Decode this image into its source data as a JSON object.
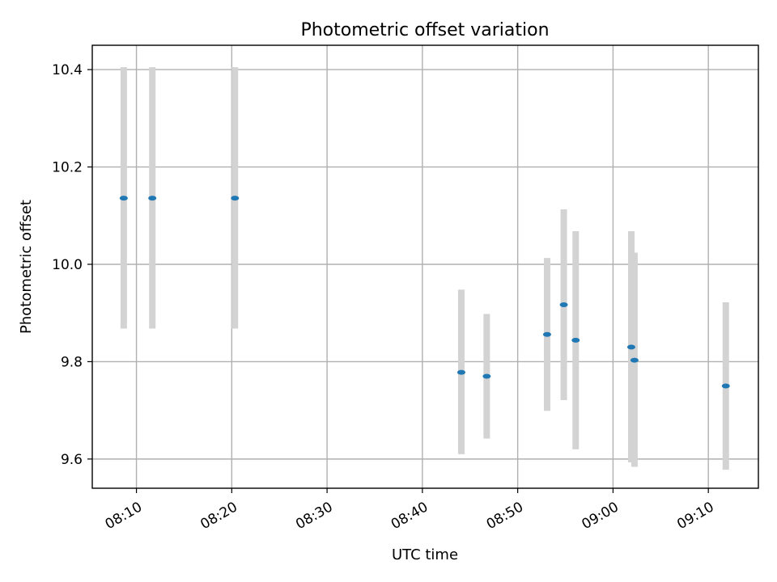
{
  "colors": {
    "point": "#1f77b4",
    "errorbar": "#d3d3d3",
    "grid": "#b0b0b0"
  },
  "chart_data": {
    "type": "scatter",
    "title": "Photometric offset variation",
    "xlabel": "UTC time",
    "ylabel": "Photometric offset",
    "x_type": "time",
    "xlim": [
      "08:05:22",
      "09:15:15"
    ],
    "ylim": [
      9.54,
      10.45
    ],
    "x_ticks": [
      "08:10",
      "08:20",
      "08:30",
      "08:40",
      "08:50",
      "09:00",
      "09:10"
    ],
    "y_ticks": [
      9.6,
      9.8,
      10.0,
      10.2,
      10.4
    ],
    "y_tick_labels": [
      "9.6",
      "9.8",
      "10.0",
      "10.2",
      "10.4"
    ],
    "grid": true,
    "points": [
      {
        "x": "08:08:40",
        "y": 10.136,
        "ylow": 9.868,
        "yhigh": 10.405
      },
      {
        "x": "08:11:40",
        "y": 10.136,
        "ylow": 9.868,
        "yhigh": 10.405
      },
      {
        "x": "08:20:20",
        "y": 10.136,
        "ylow": 9.868,
        "yhigh": 10.405
      },
      {
        "x": "08:44:05",
        "y": 9.778,
        "ylow": 9.61,
        "yhigh": 9.948
      },
      {
        "x": "08:46:45",
        "y": 9.77,
        "ylow": 9.642,
        "yhigh": 9.898
      },
      {
        "x": "08:53:05",
        "y": 9.856,
        "ylow": 9.699,
        "yhigh": 10.013
      },
      {
        "x": "08:54:50",
        "y": 9.917,
        "ylow": 9.721,
        "yhigh": 10.113
      },
      {
        "x": "08:56:05",
        "y": 9.844,
        "ylow": 9.62,
        "yhigh": 10.068
      },
      {
        "x": "09:01:55",
        "y": 9.83,
        "ylow": 9.593,
        "yhigh": 10.068
      },
      {
        "x": "09:02:15",
        "y": 9.803,
        "ylow": 9.584,
        "yhigh": 10.024
      },
      {
        "x": "09:11:50",
        "y": 9.75,
        "ylow": 9.578,
        "yhigh": 9.922
      }
    ]
  }
}
